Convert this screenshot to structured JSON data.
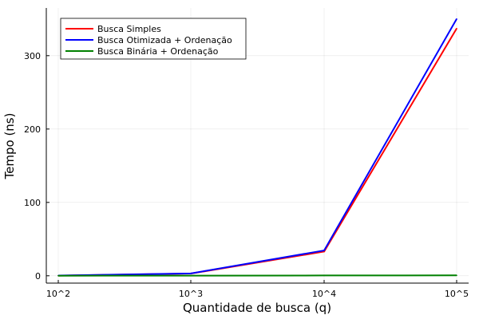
{
  "chart_data": {
    "type": "line",
    "xlabel": "Quantidade de busca (q)",
    "ylabel": "Tempo (ns)",
    "x_categories": [
      "10^2",
      "10^3",
      "10^4",
      "10^5"
    ],
    "ylim": [
      -10,
      365
    ],
    "yticks": [
      0,
      100,
      200,
      300
    ],
    "grid": true,
    "legend_position": "top-left",
    "series": [
      {
        "name": "Busca Simples",
        "color": "#ff0000",
        "values": [
          0.2,
          3,
          33,
          337
        ]
      },
      {
        "name": "Busca Otimizada + Ordenação",
        "color": "#0000ff",
        "values": [
          0.3,
          3.2,
          34.5,
          350
        ]
      },
      {
        "name": "Busca Binária + Ordenação",
        "color": "#008000",
        "values": [
          0.1,
          0.2,
          0.4,
          0.6
        ]
      }
    ]
  }
}
